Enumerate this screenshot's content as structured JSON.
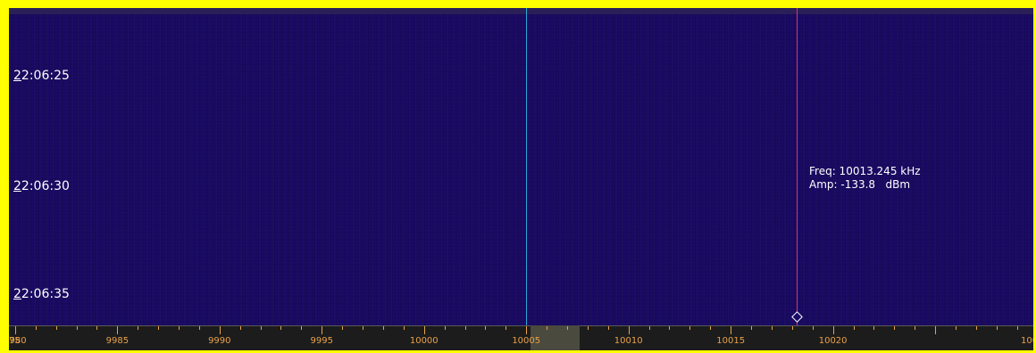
{
  "waterfall": {
    "time_labels": [
      {
        "first": "2",
        "rest": "2:06:25"
      },
      {
        "first": "2",
        "rest": "2:06:30"
      },
      {
        "first": "2",
        "rest": "2:06:35"
      }
    ],
    "vfo_frequency_khz": 10000,
    "cursor": {
      "frequency_khz": 10013.245,
      "freq_text": "Freq: 10013.245 kHz",
      "amp_text": "Amp: -133.8   dBm"
    },
    "colors": {
      "background": "#1a0b66",
      "vfo_line": "#2aa8d8",
      "cursor_line": "#e0306a",
      "axis_text": "#e8a24a",
      "frame": "#ffff00"
    }
  },
  "axis": {
    "start_khz": 9974.7,
    "end_khz": 10024.8,
    "major_step_khz": 5,
    "minor_step_khz": 1,
    "labels": [
      "75",
      "9980",
      "9985",
      "9990",
      "9995",
      "10000",
      "10005",
      "10010",
      "10015",
      "10020",
      "100"
    ],
    "passband_khz": [
      10000.2,
      10002.6
    ]
  }
}
